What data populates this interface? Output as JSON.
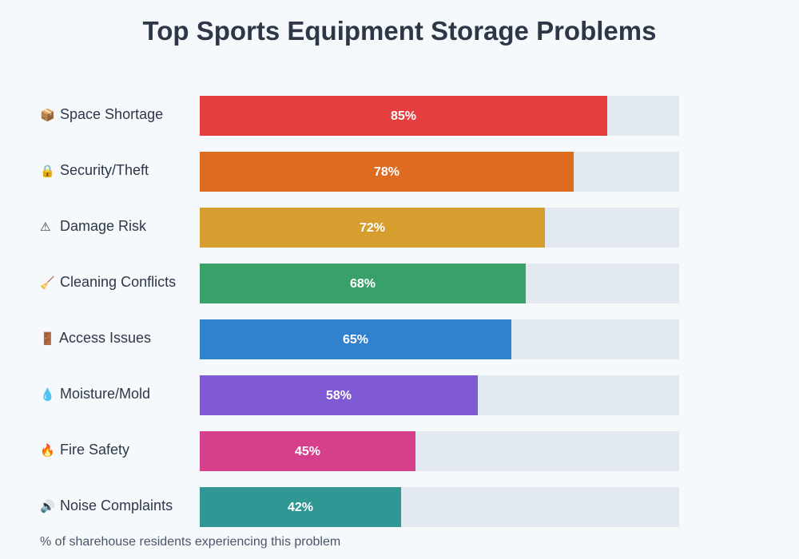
{
  "chart_data": {
    "type": "bar",
    "orientation": "horizontal",
    "title": "Top Sports Equipment Storage Problems",
    "categories": [
      "Space Shortage",
      "Security/Theft",
      "Damage Risk",
      "Cleaning Conflicts",
      "Access Issues",
      "Moisture/Mold",
      "Fire Safety",
      "Noise Complaints"
    ],
    "icons": [
      "📦",
      "🔒",
      "⚠",
      "🧹",
      "🚪",
      "💧",
      "🔥",
      "🔊"
    ],
    "icon_names": [
      "package-icon",
      "lock-icon",
      "warning-icon",
      "broom-icon",
      "door-icon",
      "droplet-icon",
      "fire-icon",
      "speaker-icon"
    ],
    "values": [
      85,
      78,
      72,
      68,
      65,
      58,
      45,
      42
    ],
    "value_labels": [
      "85%",
      "78%",
      "72%",
      "68%",
      "65%",
      "58%",
      "45%",
      "42%"
    ],
    "colors": [
      "#e53e3e",
      "#dd6b20",
      "#d69e2e",
      "#38a169",
      "#3182ce",
      "#805ad5",
      "#d53f8c",
      "#319795"
    ],
    "track_color": "#e2e8f0",
    "xlim": [
      0,
      100
    ],
    "grid": false,
    "footnote": "% of sharehouse residents experiencing this problem"
  }
}
